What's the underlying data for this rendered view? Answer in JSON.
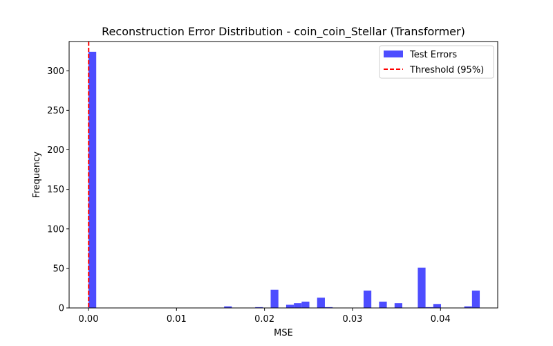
{
  "chart_data": {
    "type": "bar",
    "title": "Reconstruction Error Distribution - coin_coin_Stellar (Transformer)",
    "xlabel": "MSE",
    "ylabel": "Frequency",
    "xlim": [
      -0.0022,
      0.0465
    ],
    "ylim": [
      0,
      337
    ],
    "xticks": [
      0.0,
      0.01,
      0.02,
      0.03,
      0.04
    ],
    "xtick_labels": [
      "0.00",
      "0.01",
      "0.02",
      "0.03",
      "0.04"
    ],
    "yticks": [
      0,
      50,
      100,
      150,
      200,
      250,
      300
    ],
    "yticks_labels": [
      "0",
      "50",
      "100",
      "150",
      "200",
      "250",
      "300"
    ],
    "bin_width": 0.00088,
    "series": [
      {
        "name": "Test Errors",
        "color": "#4d4dff",
        "bins": [
          {
            "x": 0.0,
            "count": 324
          },
          {
            "x": 0.01541,
            "count": 2
          },
          {
            "x": 0.01894,
            "count": 1
          },
          {
            "x": 0.0207,
            "count": 23
          },
          {
            "x": 0.02246,
            "count": 4
          },
          {
            "x": 0.02334,
            "count": 6
          },
          {
            "x": 0.02422,
            "count": 8
          },
          {
            "x": 0.02598,
            "count": 13
          },
          {
            "x": 0.02686,
            "count": 1
          },
          {
            "x": 0.03126,
            "count": 22
          },
          {
            "x": 0.03302,
            "count": 8
          },
          {
            "x": 0.03478,
            "count": 6
          },
          {
            "x": 0.03742,
            "count": 51
          },
          {
            "x": 0.0383,
            "count": 1
          },
          {
            "x": 0.03918,
            "count": 5
          },
          {
            "x": 0.0427,
            "count": 2
          },
          {
            "x": 0.04358,
            "count": 22
          }
        ]
      }
    ],
    "threshold": {
      "name": "Threshold (95%)",
      "x": 2e-05,
      "color": "#ff0000"
    },
    "legend": {
      "position": "top-right",
      "entries": [
        {
          "label": "Test Errors",
          "kind": "patch",
          "color": "#4d4dff"
        },
        {
          "label": "Threshold (95%)",
          "kind": "dashed-line",
          "color": "#ff0000"
        }
      ]
    },
    "grid": false
  }
}
